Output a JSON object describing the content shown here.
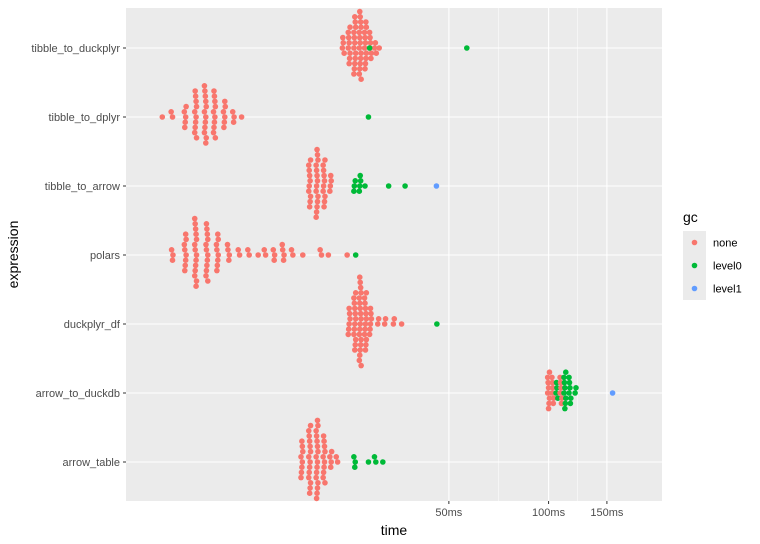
{
  "chart_data": {
    "type": "scatter",
    "subtype": "beeswarm",
    "xlabel": "time",
    "ylabel": "expression",
    "x_scale": "log10",
    "x_ticks": [
      {
        "label": "50ms",
        "value": 50
      },
      {
        "label": "100ms",
        "value": 100
      },
      {
        "label": "150ms",
        "value": 150
      }
    ],
    "xlim_ms": [
      5.3,
      220
    ],
    "categories": [
      "tibble_to_duckplyr",
      "tibble_to_dplyr",
      "tibble_to_arrow",
      "polars",
      "duckplyr_df",
      "arrow_to_duckdb",
      "arrow_table"
    ],
    "grid": true,
    "legend": {
      "title": "gc",
      "position": "right",
      "entries": [
        {
          "label": "none",
          "color": "#F8766D"
        },
        {
          "label": "level0",
          "color": "#00BA38"
        },
        {
          "label": "level1",
          "color": "#619CFF"
        }
      ]
    },
    "series": [
      {
        "category": "tibble_to_duckplyr",
        "points": [
          {
            "gc": "none",
            "ms": 24,
            "n": 4
          },
          {
            "gc": "none",
            "ms": 25,
            "n": 8
          },
          {
            "gc": "none",
            "ms": 26,
            "n": 12
          },
          {
            "gc": "none",
            "ms": 27,
            "n": 14
          },
          {
            "gc": "none",
            "ms": 28,
            "n": 10
          },
          {
            "gc": "none",
            "ms": 29,
            "n": 6
          },
          {
            "gc": "none",
            "ms": 30,
            "n": 3
          },
          {
            "gc": "none",
            "ms": 31,
            "n": 1
          },
          {
            "gc": "level0",
            "ms": 29,
            "n": 1
          },
          {
            "gc": "level0",
            "ms": 57,
            "n": 1
          }
        ]
      },
      {
        "category": "tibble_to_dplyr",
        "points": [
          {
            "gc": "none",
            "ms": 6.8,
            "n": 1
          },
          {
            "gc": "none",
            "ms": 7.3,
            "n": 2
          },
          {
            "gc": "none",
            "ms": 8.0,
            "n": 5
          },
          {
            "gc": "none",
            "ms": 8.6,
            "n": 10
          },
          {
            "gc": "none",
            "ms": 9.2,
            "n": 12
          },
          {
            "gc": "none",
            "ms": 9.8,
            "n": 10
          },
          {
            "gc": "none",
            "ms": 10.5,
            "n": 6
          },
          {
            "gc": "none",
            "ms": 11.2,
            "n": 3
          },
          {
            "gc": "none",
            "ms": 11.8,
            "n": 1
          },
          {
            "gc": "level0",
            "ms": 28.5,
            "n": 1
          }
        ]
      },
      {
        "category": "tibble_to_arrow",
        "points": [
          {
            "gc": "none",
            "ms": 19,
            "n": 10
          },
          {
            "gc": "none",
            "ms": 20,
            "n": 14
          },
          {
            "gc": "none",
            "ms": 21,
            "n": 10
          },
          {
            "gc": "none",
            "ms": 22,
            "n": 4
          },
          {
            "gc": "level0",
            "ms": 26,
            "n": 3
          },
          {
            "gc": "level0",
            "ms": 27,
            "n": 4
          },
          {
            "gc": "level0",
            "ms": 28,
            "n": 1
          },
          {
            "gc": "level0",
            "ms": 33,
            "n": 1
          },
          {
            "gc": "level0",
            "ms": 37,
            "n": 1
          },
          {
            "gc": "level1",
            "ms": 46,
            "n": 1
          }
        ]
      },
      {
        "category": "polars",
        "points": [
          {
            "gc": "none",
            "ms": 7.3,
            "n": 3
          },
          {
            "gc": "none",
            "ms": 8.0,
            "n": 8
          },
          {
            "gc": "none",
            "ms": 8.6,
            "n": 14
          },
          {
            "gc": "none",
            "ms": 9.3,
            "n": 12
          },
          {
            "gc": "none",
            "ms": 10.0,
            "n": 8
          },
          {
            "gc": "none",
            "ms": 10.8,
            "n": 4
          },
          {
            "gc": "none",
            "ms": 11.6,
            "n": 2
          },
          {
            "gc": "none",
            "ms": 12.4,
            "n": 2
          },
          {
            "gc": "none",
            "ms": 13.2,
            "n": 1
          },
          {
            "gc": "none",
            "ms": 13.9,
            "n": 2
          },
          {
            "gc": "none",
            "ms": 14.8,
            "n": 3
          },
          {
            "gc": "none",
            "ms": 15.8,
            "n": 4
          },
          {
            "gc": "none",
            "ms": 16.8,
            "n": 2
          },
          {
            "gc": "none",
            "ms": 18.0,
            "n": 1
          },
          {
            "gc": "none",
            "ms": 20.5,
            "n": 2
          },
          {
            "gc": "none",
            "ms": 21.5,
            "n": 1
          },
          {
            "gc": "none",
            "ms": 24.5,
            "n": 1
          },
          {
            "gc": "level0",
            "ms": 26.0,
            "n": 1
          }
        ]
      },
      {
        "category": "duckplyr_df",
        "points": [
          {
            "gc": "none",
            "ms": 25,
            "n": 6
          },
          {
            "gc": "none",
            "ms": 26,
            "n": 12
          },
          {
            "gc": "none",
            "ms": 27,
            "n": 18
          },
          {
            "gc": "none",
            "ms": 28,
            "n": 12
          },
          {
            "gc": "none",
            "ms": 29,
            "n": 6
          },
          {
            "gc": "none",
            "ms": 30.5,
            "n": 2
          },
          {
            "gc": "none",
            "ms": 32,
            "n": 2
          },
          {
            "gc": "none",
            "ms": 34,
            "n": 2
          },
          {
            "gc": "none",
            "ms": 36,
            "n": 1
          },
          {
            "gc": "level0",
            "ms": 46,
            "n": 1
          }
        ]
      },
      {
        "category": "arrow_to_duckdb",
        "points": [
          {
            "gc": "none",
            "ms": 100,
            "n": 8
          },
          {
            "gc": "none",
            "ms": 103,
            "n": 6
          },
          {
            "gc": "level0",
            "ms": 106,
            "n": 4
          },
          {
            "gc": "none",
            "ms": 109,
            "n": 6
          },
          {
            "gc": "level0",
            "ms": 112,
            "n": 8
          },
          {
            "gc": "level0",
            "ms": 116,
            "n": 6
          },
          {
            "gc": "level0",
            "ms": 121,
            "n": 2
          },
          {
            "gc": "level1",
            "ms": 157,
            "n": 1
          }
        ]
      },
      {
        "category": "arrow_table",
        "points": [
          {
            "gc": "none",
            "ms": 18,
            "n": 8
          },
          {
            "gc": "none",
            "ms": 19,
            "n": 14
          },
          {
            "gc": "none",
            "ms": 20,
            "n": 16
          },
          {
            "gc": "none",
            "ms": 21,
            "n": 10
          },
          {
            "gc": "none",
            "ms": 22,
            "n": 4
          },
          {
            "gc": "none",
            "ms": 23,
            "n": 2
          },
          {
            "gc": "level0",
            "ms": 26,
            "n": 3
          },
          {
            "gc": "level0",
            "ms": 28.5,
            "n": 1
          },
          {
            "gc": "level0",
            "ms": 30,
            "n": 2
          },
          {
            "gc": "level0",
            "ms": 31.5,
            "n": 1
          }
        ]
      }
    ]
  }
}
